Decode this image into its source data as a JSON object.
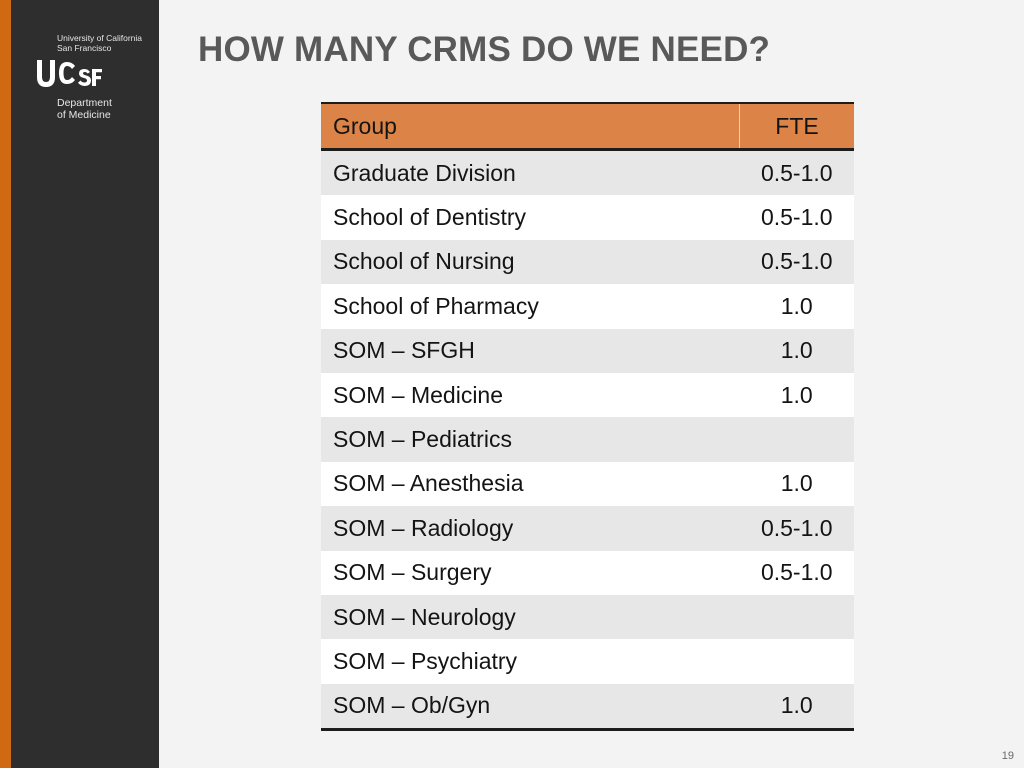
{
  "sidebar": {
    "university_line1": "University of California",
    "university_line2": "San Francisco",
    "logo_text": "UCSF",
    "department_line1": "Department",
    "department_line2": "of Medicine"
  },
  "title": "HOW MANY CRMS DO WE NEED?",
  "table": {
    "headers": {
      "group": "Group",
      "fte": "FTE"
    },
    "rows": [
      {
        "group": "Graduate Division",
        "fte": "0.5-1.0"
      },
      {
        "group": "School of Dentistry",
        "fte": "0.5-1.0"
      },
      {
        "group": "School of Nursing",
        "fte": "0.5-1.0"
      },
      {
        "group": "School of Pharmacy",
        "fte": "1.0"
      },
      {
        "group": "SOM – SFGH",
        "fte": "1.0"
      },
      {
        "group": "SOM – Medicine",
        "fte": "1.0"
      },
      {
        "group": "SOM – Pediatrics",
        "fte": ""
      },
      {
        "group": "SOM – Anesthesia",
        "fte": "1.0"
      },
      {
        "group": "SOM – Radiology",
        "fte": "0.5-1.0"
      },
      {
        "group": "SOM – Surgery",
        "fte": "0.5-1.0"
      },
      {
        "group": "SOM – Neurology",
        "fte": ""
      },
      {
        "group": "SOM – Psychiatry",
        "fte": ""
      },
      {
        "group": "SOM – Ob/Gyn",
        "fte": "1.0"
      }
    ]
  },
  "slide_number": "19",
  "colors": {
    "accent_orange": "#d06a12",
    "header_orange": "#dc8447",
    "sidebar_dark": "#2e2e2e",
    "title_gray": "#595959"
  }
}
